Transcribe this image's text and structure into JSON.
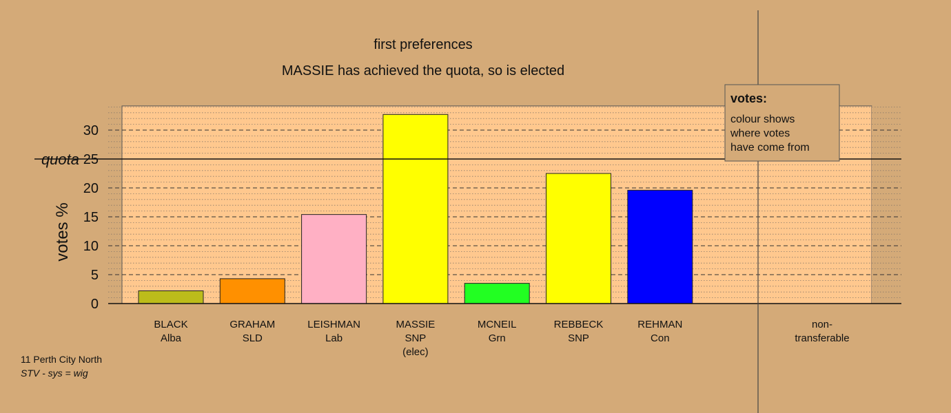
{
  "title_line1": "first preferences",
  "title_line2": "MASSIE has achieved the quota, so is elected",
  "legend": {
    "heading": "votes:",
    "lines": [
      "colour shows",
      "where votes",
      "have come from"
    ]
  },
  "footer": {
    "line1": "11 Perth City North",
    "line2": "STV - sys = wig"
  },
  "chart_data": {
    "type": "bar",
    "title": "first preferences",
    "subtitle": "MASSIE has achieved the quota, so is elected",
    "ylabel": "votes %",
    "xlabel": "",
    "ylim": [
      0,
      34
    ],
    "yticks": [
      0,
      5,
      10,
      15,
      20,
      25,
      30
    ],
    "quota": {
      "label": "quota",
      "value": 25
    },
    "grid": true,
    "categories": [
      {
        "name": "BLACK",
        "party": "Alba",
        "note": "",
        "value": 2.2,
        "color": "#bcbc1a"
      },
      {
        "name": "GRAHAM",
        "party": "SLD",
        "note": "",
        "value": 4.3,
        "color": "#ff9000"
      },
      {
        "name": "LEISHMAN",
        "party": "Lab",
        "note": "",
        "value": 15.4,
        "color": "#ffb0c4"
      },
      {
        "name": "MASSIE",
        "party": "SNP",
        "note": "(elec)",
        "value": 32.7,
        "color": "#ffff00"
      },
      {
        "name": "MCNEIL",
        "party": "Grn",
        "note": "",
        "value": 3.5,
        "color": "#22ff22"
      },
      {
        "name": "REBBECK",
        "party": "SNP",
        "note": "",
        "value": 22.5,
        "color": "#ffff00"
      },
      {
        "name": "REHMAN",
        "party": "Con",
        "note": "",
        "value": 19.6,
        "color": "#0000ff"
      }
    ],
    "non_transferable": {
      "label_line1": "non-",
      "label_line2": "transferable",
      "value": 0
    }
  }
}
